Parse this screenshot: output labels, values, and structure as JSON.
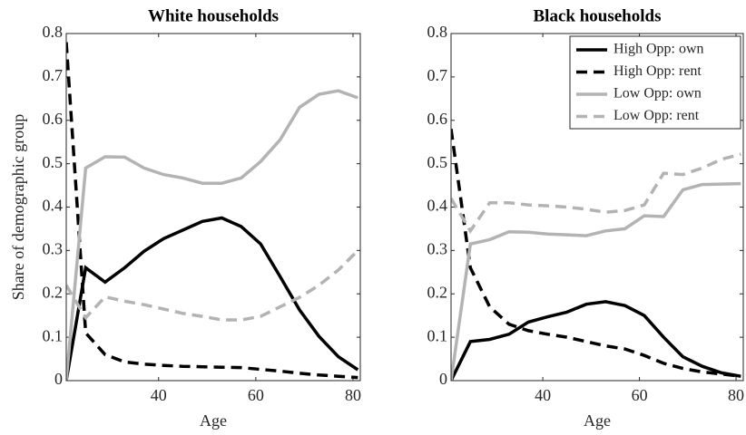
{
  "chart_data": [
    {
      "type": "line",
      "title": "White households",
      "xlabel": "Age",
      "ylabel": "Share of demographic group",
      "x": [
        21,
        25,
        29,
        33,
        37,
        41,
        45,
        49,
        53,
        57,
        61,
        65,
        69,
        73,
        77,
        81
      ],
      "xlim": [
        21,
        81.5
      ],
      "ylim": [
        0,
        0.8
      ],
      "xticks": [
        40,
        60,
        80
      ],
      "yticks": [
        0,
        0.1,
        0.2,
        0.3,
        0.4,
        0.5,
        0.6,
        0.7,
        0.8
      ],
      "series": [
        {
          "color": "#000000",
          "dash": false,
          "values": [
            0,
            0.26,
            0.227,
            0.26,
            0.298,
            0.327,
            0.347,
            0.367,
            0.375,
            0.355,
            0.315,
            0.24,
            0.163,
            0.102,
            0.055,
            0.025
          ]
        },
        {
          "color": "#000000",
          "dash": true,
          "values": [
            0.78,
            0.11,
            0.06,
            0.043,
            0.038,
            0.035,
            0.033,
            0.032,
            0.031,
            0.03,
            0.026,
            0.022,
            0.017,
            0.013,
            0.01,
            0.007
          ]
        },
        {
          "color": "#b3b3b3",
          "dash": false,
          "values": [
            0,
            0.49,
            0.516,
            0.515,
            0.49,
            0.475,
            0.467,
            0.455,
            0.455,
            0.467,
            0.505,
            0.555,
            0.63,
            0.66,
            0.668,
            0.652
          ]
        },
        {
          "color": "#b3b3b3",
          "dash": true,
          "values": [
            0.22,
            0.145,
            0.193,
            0.183,
            0.175,
            0.165,
            0.155,
            0.148,
            0.14,
            0.14,
            0.148,
            0.17,
            0.192,
            0.22,
            0.255,
            0.3
          ]
        }
      ]
    },
    {
      "type": "line",
      "title": "Black households",
      "xlabel": "Age",
      "legend": "upper right",
      "x": [
        21,
        25,
        29,
        33,
        37,
        41,
        45,
        49,
        53,
        57,
        61,
        65,
        69,
        73,
        77,
        81
      ],
      "xlim": [
        21,
        81.5
      ],
      "ylim": [
        0,
        0.8
      ],
      "xticks": [
        40,
        60,
        80
      ],
      "yticks": [
        0,
        0.1,
        0.2,
        0.3,
        0.4,
        0.5,
        0.6,
        0.7,
        0.8
      ],
      "series": [
        {
          "name": "High Opp: own",
          "color": "#000000",
          "dash": false,
          "values": [
            0,
            0.09,
            0.095,
            0.107,
            0.135,
            0.147,
            0.158,
            0.176,
            0.182,
            0.173,
            0.15,
            0.1,
            0.055,
            0.033,
            0.018,
            0.01
          ]
        },
        {
          "name": "High Opp: rent",
          "color": "#000000",
          "dash": true,
          "values": [
            0.58,
            0.26,
            0.17,
            0.13,
            0.115,
            0.107,
            0.1,
            0.09,
            0.08,
            0.073,
            0.058,
            0.04,
            0.028,
            0.02,
            0.015,
            0.01
          ]
        },
        {
          "name": "Low Opp: own",
          "color": "#b3b3b3",
          "dash": false,
          "values": [
            0,
            0.315,
            0.325,
            0.343,
            0.342,
            0.338,
            0.336,
            0.334,
            0.345,
            0.35,
            0.38,
            0.378,
            0.44,
            0.452,
            0.453,
            0.454
          ]
        },
        {
          "name": "Low Opp: rent",
          "color": "#b3b3b3",
          "dash": true,
          "values": [
            0.42,
            0.345,
            0.41,
            0.41,
            0.405,
            0.403,
            0.4,
            0.395,
            0.388,
            0.392,
            0.405,
            0.478,
            0.475,
            0.49,
            0.51,
            0.522
          ]
        }
      ]
    }
  ]
}
